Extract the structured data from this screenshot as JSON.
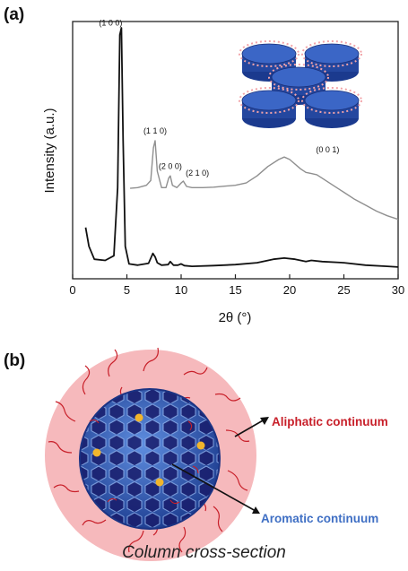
{
  "panels": {
    "a": "(a)",
    "b": "(b)"
  },
  "chart_data": {
    "type": "line",
    "xlabel": "2θ (°)",
    "ylabel": "Intensity (a.u.)",
    "xlim": [
      0,
      30
    ],
    "xticks": [
      0,
      5,
      10,
      15,
      20,
      25,
      30
    ],
    "xtick_labels": [
      "0",
      "5",
      "10",
      "15",
      "20",
      "25",
      "30"
    ],
    "grid": false,
    "series": [
      {
        "color": "#111111",
        "x": [
          1.2,
          1.5,
          2.0,
          3.0,
          3.8,
          4.15,
          4.35,
          4.5,
          4.65,
          4.85,
          5.2,
          6.0,
          7.0,
          7.4,
          7.6,
          7.8,
          8.2,
          8.8,
          9.0,
          9.3,
          9.7,
          10.0,
          10.3,
          11.0,
          13.0,
          15.0,
          17.0,
          18.5,
          19.5,
          20.5,
          21.5,
          22.0,
          23.0,
          25.0,
          27.0,
          29.0,
          30.0
        ],
        "y": [
          0.18,
          0.1,
          0.045,
          0.04,
          0.06,
          0.35,
          1.0,
          1.03,
          0.55,
          0.1,
          0.025,
          0.02,
          0.028,
          0.07,
          0.055,
          0.03,
          0.02,
          0.022,
          0.035,
          0.02,
          0.02,
          0.025,
          0.018,
          0.015,
          0.018,
          0.022,
          0.03,
          0.045,
          0.05,
          0.045,
          0.035,
          0.04,
          0.035,
          0.03,
          0.02,
          0.015,
          0.012
        ]
      },
      {
        "color": "#8f8f8f",
        "x": [
          5.3,
          6.0,
          6.8,
          7.2,
          7.45,
          7.6,
          7.8,
          8.2,
          8.6,
          8.85,
          9.0,
          9.2,
          9.6,
          10.0,
          10.2,
          10.5,
          11.0,
          12.0,
          13.0,
          14.0,
          15.0,
          16.0,
          17.0,
          18.0,
          19.0,
          19.5,
          20.0,
          21.0,
          21.5,
          22.0,
          22.5,
          23.0,
          24.0,
          25.0,
          26.0,
          27.0,
          28.0,
          29.0,
          30.0
        ],
        "y": [
          0.347,
          0.35,
          0.36,
          0.38,
          0.52,
          0.55,
          0.42,
          0.35,
          0.35,
          0.39,
          0.4,
          0.36,
          0.35,
          0.37,
          0.378,
          0.355,
          0.35,
          0.35,
          0.352,
          0.356,
          0.36,
          0.37,
          0.4,
          0.44,
          0.47,
          0.48,
          0.47,
          0.43,
          0.415,
          0.41,
          0.405,
          0.39,
          0.36,
          0.33,
          0.3,
          0.275,
          0.25,
          0.23,
          0.215
        ]
      }
    ],
    "annotations": [
      {
        "text": "(1 0 0)",
        "x": 3.5,
        "y": 1.04
      },
      {
        "text": "(1 1 0)",
        "x": 7.6,
        "y": 0.58
      },
      {
        "text": "(2 0 0)",
        "x": 9.0,
        "y": 0.43
      },
      {
        "text": "(2 1 0)",
        "x": 11.5,
        "y": 0.4
      },
      {
        "text": "(0 0 1)",
        "x": 23.5,
        "y": 0.5
      }
    ]
  },
  "diagram": {
    "callouts": {
      "aliphatic": "Aliphatic continuum",
      "aromatic": "Aromatic continuum"
    },
    "caption": "Column cross-section",
    "colors": {
      "aliphatic": "#c8202a",
      "aromatic": "#3f6fc4",
      "halo": "#f6b9bc",
      "core": "#2f5fb8",
      "core_dark": "#151a6a",
      "dots": "#f1b52c"
    }
  }
}
